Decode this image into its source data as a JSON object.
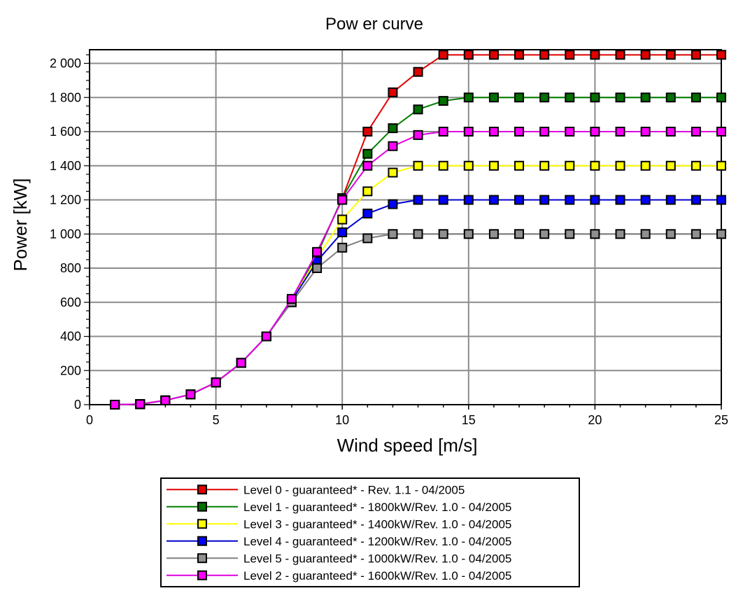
{
  "chart_data": {
    "type": "line",
    "title": "Pow er curve",
    "xlabel": "Wind speed [m/s]",
    "ylabel": "Power [kW]",
    "xlim": [
      0,
      25
    ],
    "ylim": [
      0,
      2080
    ],
    "xticks": [
      0,
      5,
      10,
      15,
      20,
      25
    ],
    "yticks": [
      0,
      200,
      400,
      600,
      800,
      1000,
      1200,
      1400,
      1600,
      1800,
      2000
    ],
    "ytick_labels": [
      "0",
      "200",
      "400",
      "600",
      "800",
      "1 000",
      "1 200",
      "1 400",
      "1 600",
      "1 800",
      "2 000"
    ],
    "grid": true,
    "legend_position": "bottom",
    "x": [
      1,
      2,
      3,
      4,
      5,
      6,
      7,
      8,
      9,
      10,
      11,
      12,
      13,
      14,
      15,
      16,
      17,
      18,
      19,
      20,
      21,
      22,
      23,
      24,
      25
    ],
    "series": [
      {
        "name": "Level 0 - guaranteed* - Rev. 1.1 - 04/2005",
        "color": "#e00000",
        "marker_color": "#e00000",
        "values": [
          0,
          3,
          25,
          60,
          130,
          245,
          400,
          610,
          880,
          1210,
          1600,
          1830,
          1950,
          2050,
          2050,
          2050,
          2050,
          2050,
          2050,
          2050,
          2050,
          2050,
          2050,
          2050,
          2050
        ]
      },
      {
        "name": "Level 1 - guaranteed* - 1800kW/Rev. 1.0 - 04/2005",
        "color": "#008000",
        "marker_color": "#007000",
        "values": [
          0,
          3,
          25,
          60,
          130,
          245,
          400,
          610,
          880,
          1210,
          1470,
          1620,
          1730,
          1780,
          1800,
          1800,
          1800,
          1800,
          1800,
          1800,
          1800,
          1800,
          1800,
          1800,
          1800
        ]
      },
      {
        "name": "Level 3 - guaranteed* - 1400kW/Rev. 1.0 - 04/2005",
        "color": "#ffff00",
        "marker_color": "#ffff00",
        "values": [
          0,
          3,
          25,
          60,
          130,
          245,
          400,
          610,
          860,
          1085,
          1250,
          1360,
          1400,
          1400,
          1400,
          1400,
          1400,
          1400,
          1400,
          1400,
          1400,
          1400,
          1400,
          1400,
          1400
        ]
      },
      {
        "name": "Level 4 - guaranteed* - 1200kW/Rev. 1.0 - 04/2005",
        "color": "#0000d0",
        "marker_color": "#0000ff",
        "values": [
          0,
          3,
          25,
          60,
          130,
          245,
          400,
          610,
          840,
          1010,
          1120,
          1175,
          1200,
          1200,
          1200,
          1200,
          1200,
          1200,
          1200,
          1200,
          1200,
          1200,
          1200,
          1200,
          1200
        ]
      },
      {
        "name": "Level 5 - guaranteed* - 1000kW/Rev. 1.0 - 04/2005",
        "color": "#808080",
        "marker_color": "#909090",
        "values": [
          0,
          3,
          25,
          60,
          130,
          245,
          400,
          600,
          800,
          920,
          975,
          1000,
          1000,
          1000,
          1000,
          1000,
          1000,
          1000,
          1000,
          1000,
          1000,
          1000,
          1000,
          1000,
          1000
        ]
      },
      {
        "name": "Level 2 - guaranteed* - 1600kW/Rev. 1.0 - 04/2005",
        "color": "#e000e0",
        "marker_color": "#ff00ff",
        "values": [
          0,
          3,
          25,
          60,
          130,
          245,
          400,
          620,
          895,
          1200,
          1400,
          1515,
          1580,
          1600,
          1600,
          1600,
          1600,
          1600,
          1600,
          1600,
          1600,
          1600,
          1600,
          1600,
          1600
        ]
      }
    ]
  }
}
